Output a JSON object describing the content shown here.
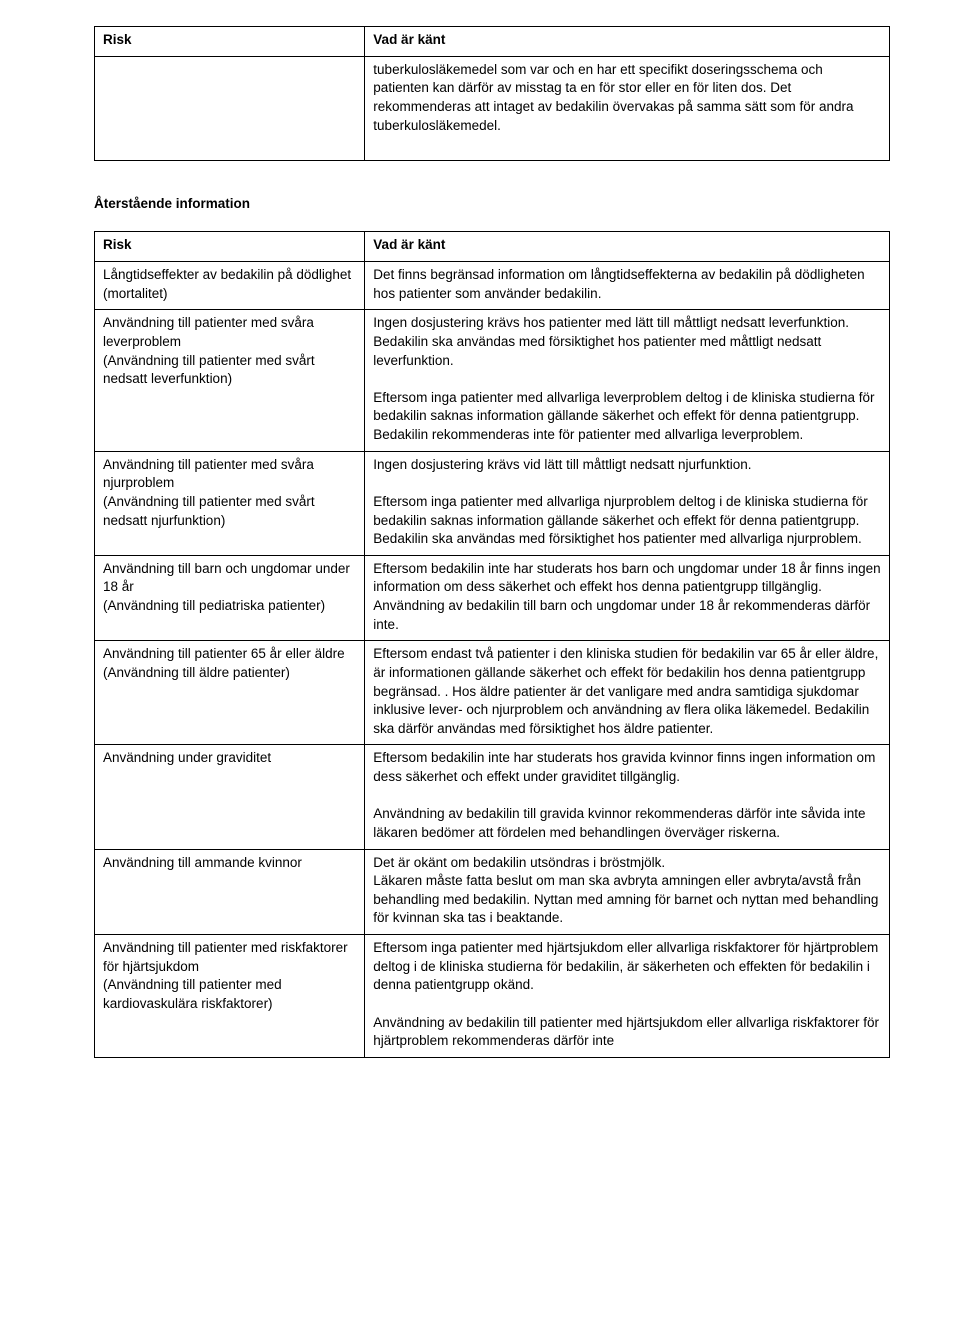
{
  "table1": {
    "header": {
      "risk": "Risk",
      "known": "Vad är känt"
    },
    "row": {
      "risk": "",
      "known_p1": "tuberkulosläkemedel som var och en har ett specifikt doseringsschema och patienten kan därför av misstag ta en för stor eller en för liten dos. Det rekommenderas att intaget av bedakilin övervakas på samma sätt som för andra tuberkulosläkemedel."
    }
  },
  "section_heading": "Återstående information",
  "table2": {
    "header": {
      "risk": "Risk",
      "known": "Vad är känt"
    },
    "rows": [
      {
        "risk": "Långtidseffekter av bedakilin på dödlighet (mortalitet)",
        "known": [
          "Det finns begränsad information om långtidseffekterna av bedakilin på dödligheten hos patienter som använder bedakilin."
        ]
      },
      {
        "risk": "Användning till patienter med svåra leverproblem\n(Användning till patienter med svårt nedsatt leverfunktion)",
        "known": [
          "Ingen dosjustering krävs hos patienter med lätt till måttligt nedsatt leverfunktion. Bedakilin ska användas med försiktighet hos patienter med måttligt nedsatt leverfunktion.",
          "",
          "Eftersom inga patienter med allvarliga leverproblem deltog i de kliniska studierna för bedakilin saknas information gällande säkerhet och effekt för denna patientgrupp. Bedakilin rekommenderas inte för patienter med allvarliga leverproblem."
        ]
      },
      {
        "risk": "Användning till patienter med svåra njurproblem\n(Användning till patienter med svårt nedsatt njurfunktion)",
        "known": [
          "Ingen dosjustering krävs vid lätt till måttligt nedsatt njurfunktion.",
          "",
          "Eftersom inga patienter med allvarliga njurproblem deltog i de kliniska studierna för bedakilin saknas information gällande säkerhet och effekt för denna patientgrupp. Bedakilin ska användas med försiktighet hos patienter med allvarliga njurproblem."
        ]
      },
      {
        "risk": "Användning till barn och ungdomar under 18 år\n(Användning till pediatriska patienter)",
        "known": [
          "Eftersom bedakilin inte har studerats hos barn och ungdomar under 18 år finns ingen information om dess säkerhet och effekt hos denna patientgrupp tillgänglig. Användning av bedakilin till barn och ungdomar under 18 år rekommenderas därför inte."
        ]
      },
      {
        "risk": "Användning till patienter 65 år eller äldre\n(Användning till äldre patienter)",
        "known": [
          "Eftersom endast två patienter i den kliniska studien för bedakilin var 65 år eller äldre, är informationen gällande säkerhet och effekt för bedakilin hos denna patientgrupp begränsad. . Hos äldre patienter är det vanligare med andra samtidiga sjukdomar inklusive lever- och njurproblem och användning av flera olika läkemedel. Bedakilin ska därför användas med försiktighet hos äldre patienter."
        ]
      },
      {
        "risk": "Användning under graviditet",
        "known": [
          "Eftersom bedakilin inte har studerats hos gravida kvinnor finns ingen information om dess säkerhet och effekt under graviditet tillgänglig.",
          "",
          "Användning av bedakilin till gravida kvinnor rekommenderas därför inte såvida inte läkaren bedömer att fördelen med behandlingen överväger riskerna."
        ]
      },
      {
        "risk": "Användning till ammande kvinnor",
        "known": [
          "Det är okänt om bedakilin utsöndras i bröstmjölk.",
          "Läkaren måste fatta beslut om man ska avbryta amningen eller avbryta/avstå från behandling med bedakilin. Nyttan med amning för barnet och nyttan med behandling för kvinnan ska tas i beaktande."
        ]
      },
      {
        "risk": "Användning till patienter med riskfaktorer för hjärtsjukdom\n(Användning till patienter med kardiovaskulära riskfaktorer)",
        "known": [
          "Eftersom inga patienter med hjärtsjukdom eller allvarliga riskfaktorer för hjärtproblem deltog i de kliniska studierna för bedakilin, är säkerheten och effekten för bedakilin i denna patientgrupp okänd.",
          "",
          "Användning av bedakilin till patienter med hjärtsjukdom eller allvarliga riskfaktorer för hjärtproblem rekommenderas därför inte"
        ]
      }
    ]
  }
}
